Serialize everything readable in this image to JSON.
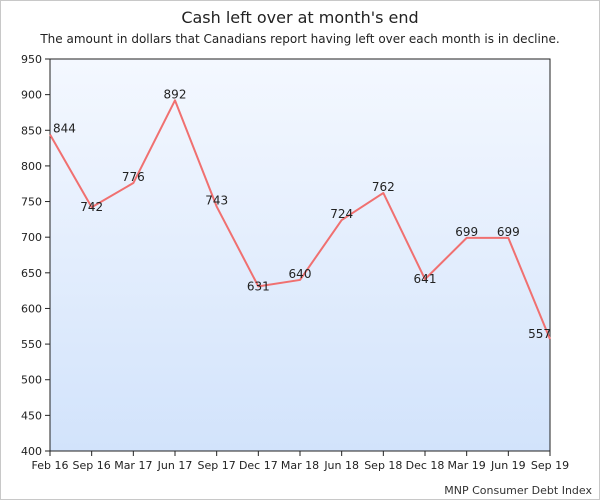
{
  "chart_data": {
    "type": "line",
    "title": "Cash left over at month's end",
    "subtitle": "The amount in dollars that Canadians report having left over each month is in decline.",
    "xlabel": "",
    "ylabel": "",
    "categories": [
      "Feb 16",
      "Sep 16",
      "Mar 17",
      "Jun 17",
      "Sep 17",
      "Dec 17",
      "Mar 18",
      "Jun 18",
      "Sep 18",
      "Dec 18",
      "Mar 19",
      "Jun 19",
      "Sep 19"
    ],
    "series": [
      {
        "values": [
          844,
          742,
          776,
          892,
          743,
          631,
          640,
          724,
          762,
          641,
          699,
          699,
          557
        ]
      }
    ],
    "ylim": [
      400,
      950
    ],
    "yticks": [
      950,
      900,
      850,
      800,
      750,
      700,
      650,
      600,
      550,
      500,
      450,
      400
    ],
    "grid": false,
    "line_color": "#f07070",
    "plot_background_top": "#f4f8ff",
    "plot_background_bottom": "#d2e3fb",
    "source": "MNP Consumer Debt Index"
  }
}
